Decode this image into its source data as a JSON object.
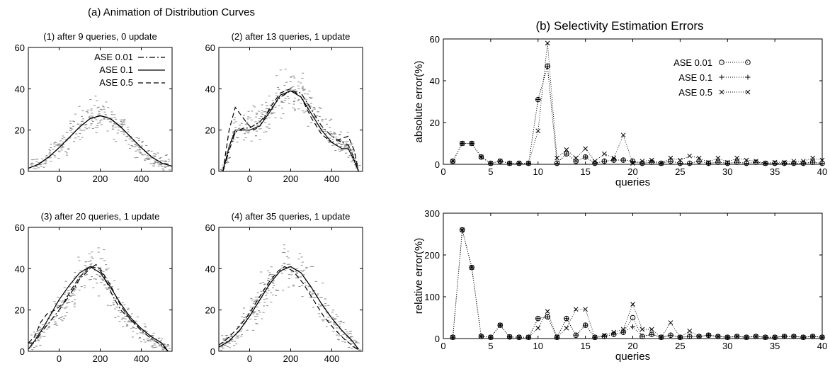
{
  "titles": {
    "left": "(a) Animation of Distribution Curves",
    "right": "(b) Selectivity Estimation Errors"
  },
  "chart_data": [
    {
      "type": "line",
      "title": "(1) after 9 queries, 0 update",
      "xlim": [
        -150,
        550
      ],
      "ylim": [
        0,
        60
      ],
      "xticks": [
        0,
        200,
        400
      ],
      "yticks": [
        0,
        20,
        40,
        60
      ],
      "legend": "top-right",
      "series": [
        {
          "name": "ASE 0.01",
          "x": [
            -150,
            -100,
            -50,
            0,
            50,
            100,
            150,
            200,
            250,
            300,
            350,
            400,
            450,
            500,
            550
          ],
          "y": [
            1.5,
            3.5,
            7,
            11.5,
            16.5,
            21.5,
            25.5,
            27,
            25.5,
            21.5,
            16.5,
            11.5,
            7,
            4,
            2.5
          ]
        },
        {
          "name": "ASE 0.1",
          "x": [
            -150,
            -100,
            -50,
            0,
            50,
            100,
            150,
            200,
            250,
            300,
            350,
            400,
            450,
            500,
            550
          ],
          "y": [
            1.5,
            3.5,
            7,
            11.5,
            16.5,
            21.5,
            25.5,
            27,
            25.5,
            21.5,
            16.5,
            11.5,
            7,
            4,
            2.5
          ]
        },
        {
          "name": "ASE 0.5",
          "x": [
            -150,
            -100,
            -50,
            0,
            50,
            100,
            150,
            200,
            250,
            300,
            350,
            400,
            450,
            500,
            550
          ],
          "y": [
            1.5,
            3.5,
            7,
            11.5,
            16.5,
            21.5,
            25.5,
            27,
            25.5,
            21.5,
            16.5,
            11.5,
            7,
            4,
            2.5
          ]
        }
      ]
    },
    {
      "type": "line",
      "title": "(2) after 13 queries, 1 update",
      "xlim": [
        -150,
        550
      ],
      "ylim": [
        0,
        60
      ],
      "xticks": [
        0,
        200,
        400
      ],
      "yticks": [
        0,
        20,
        40,
        60
      ],
      "series": [
        {
          "name": "ASE 0.01",
          "x": [
            -130,
            -100,
            -70,
            -30,
            0,
            50,
            100,
            150,
            200,
            250,
            300,
            350,
            400,
            450,
            480,
            510,
            530
          ],
          "y": [
            0,
            10,
            19,
            21,
            21,
            24,
            30,
            36,
            39,
            38,
            30,
            22,
            17,
            14,
            13,
            6,
            0
          ]
        },
        {
          "name": "ASE 0.1",
          "x": [
            -130,
            -100,
            -70,
            -30,
            0,
            50,
            100,
            150,
            200,
            250,
            300,
            350,
            400,
            450,
            480,
            510,
            530
          ],
          "y": [
            0,
            12,
            20,
            20,
            20,
            22,
            29,
            37,
            39,
            36,
            28,
            20,
            14,
            11,
            11,
            5,
            0
          ]
        },
        {
          "name": "ASE 0.5",
          "x": [
            -130,
            -100,
            -70,
            -40,
            -10,
            20,
            50,
            100,
            150,
            200,
            250,
            300,
            350,
            400,
            450,
            480,
            510,
            530
          ],
          "y": [
            0,
            20,
            31,
            27,
            23,
            20,
            22,
            31,
            38,
            40,
            36,
            26,
            18,
            14,
            16,
            17,
            10,
            0
          ]
        }
      ]
    },
    {
      "type": "line",
      "title": "(3) after 20 queries, 1 update",
      "xlim": [
        -150,
        550
      ],
      "ylim": [
        0,
        60
      ],
      "xticks": [
        0,
        200,
        400
      ],
      "yticks": [
        0,
        20,
        40,
        60
      ],
      "series": [
        {
          "name": "ASE 0.01",
          "x": [
            -150,
            -120,
            -80,
            -40,
            0,
            50,
            100,
            150,
            180,
            220,
            260,
            300,
            350,
            400,
            450,
            500,
            530
          ],
          "y": [
            4,
            4,
            10,
            15,
            20,
            27,
            35,
            40,
            42,
            36,
            27,
            20,
            15,
            10,
            6,
            3,
            0
          ]
        },
        {
          "name": "ASE 0.1",
          "x": [
            -150,
            -120,
            -80,
            -40,
            0,
            50,
            100,
            150,
            200,
            250,
            300,
            350,
            400,
            450,
            500,
            530
          ],
          "y": [
            1,
            5,
            11,
            18,
            25,
            32,
            38,
            41,
            38,
            31,
            23,
            16,
            11,
            7,
            4,
            0
          ]
        },
        {
          "name": "ASE 0.5",
          "x": [
            -150,
            -120,
            -90,
            -60,
            -20,
            20,
            60,
            100,
            150,
            200,
            250,
            300,
            350,
            400,
            450,
            500,
            530
          ],
          "y": [
            4,
            7,
            14,
            18,
            20,
            23,
            30,
            36,
            41,
            40,
            32,
            22,
            15,
            11,
            7,
            4,
            0
          ]
        }
      ]
    },
    {
      "type": "line",
      "title": "(4) after 35 queries, 1 update",
      "xlim": [
        -150,
        550
      ],
      "ylim": [
        0,
        60
      ],
      "xticks": [
        0,
        200,
        400
      ],
      "yticks": [
        0,
        20,
        40,
        60
      ],
      "series": [
        {
          "name": "ASE 0.01",
          "x": [
            -150,
            -100,
            -50,
            0,
            50,
            100,
            150,
            200,
            250,
            300,
            350,
            400,
            450,
            500,
            530
          ],
          "y": [
            2,
            5,
            10,
            17,
            25,
            33,
            39,
            41,
            38,
            31,
            23,
            16,
            10,
            5,
            1
          ]
        },
        {
          "name": "ASE 0.1",
          "x": [
            -150,
            -100,
            -50,
            0,
            50,
            100,
            150,
            200,
            250,
            300,
            350,
            400,
            450,
            500,
            530
          ],
          "y": [
            2,
            5,
            10,
            17,
            25,
            33,
            39,
            41,
            38,
            31,
            23,
            16,
            10,
            5,
            1
          ]
        },
        {
          "name": "ASE 0.5",
          "x": [
            -150,
            -110,
            -60,
            -10,
            40,
            90,
            140,
            170,
            210,
            260,
            310,
            360,
            410,
            460,
            510,
            540
          ],
          "y": [
            3,
            6,
            11,
            17,
            25,
            33,
            39,
            41,
            39,
            33,
            25,
            17,
            11,
            6,
            2,
            0
          ]
        }
      ]
    },
    {
      "type": "scatter",
      "title": "",
      "xlabel": "queries",
      "ylabel": "absolute error(%)",
      "xlim": [
        0,
        40
      ],
      "ylim": [
        0,
        60
      ],
      "xticks": [
        0,
        5,
        10,
        15,
        20,
        25,
        30,
        35,
        40
      ],
      "yticks": [
        0,
        20,
        40,
        60
      ],
      "legend": "top-right",
      "series": [
        {
          "name": "ASE 0.01",
          "x": [
            1,
            2,
            3,
            4,
            5,
            6,
            7,
            8,
            9,
            10,
            11,
            12,
            13,
            14,
            15,
            16,
            17,
            18,
            19,
            20,
            21,
            22,
            23,
            24,
            25,
            26,
            27,
            28,
            29,
            30,
            31,
            32,
            33,
            34,
            35,
            36,
            37,
            38,
            39,
            40
          ],
          "y": [
            1.5,
            10,
            10,
            3.5,
            0.5,
            1.5,
            0.5,
            0.5,
            0.5,
            31,
            47,
            0.5,
            5,
            1.5,
            3.5,
            0.5,
            1.5,
            2,
            2,
            1.5,
            0.5,
            1,
            0.5,
            1.5,
            0.5,
            0.5,
            1.5,
            0.5,
            1,
            0.5,
            1,
            0.5,
            1,
            0.5,
            0.5,
            0.5,
            0.5,
            0.5,
            1,
            0.5
          ]
        },
        {
          "name": "ASE 0.1",
          "x": [
            1,
            2,
            3,
            4,
            5,
            6,
            7,
            8,
            9,
            10,
            11,
            12,
            13,
            14,
            15,
            16,
            17,
            18,
            19,
            20,
            21,
            22,
            23,
            24,
            25,
            26,
            27,
            28,
            29,
            30,
            31,
            32,
            33,
            34,
            35,
            36,
            37,
            38,
            39,
            40
          ],
          "y": [
            1.5,
            10,
            10,
            3.5,
            0.5,
            1.5,
            0.5,
            0.5,
            0.5,
            31,
            47,
            0.5,
            5,
            1.5,
            3.5,
            0.5,
            1.5,
            2,
            2,
            1.5,
            0.5,
            1,
            0.5,
            1.5,
            0.5,
            0.5,
            1.5,
            0.5,
            1,
            0.5,
            1,
            0.5,
            1,
            0.5,
            0.5,
            0.5,
            0.5,
            0.5,
            1,
            0.5
          ]
        },
        {
          "name": "ASE 0.5",
          "x": [
            1,
            2,
            3,
            4,
            5,
            6,
            7,
            8,
            9,
            10,
            11,
            12,
            13,
            14,
            15,
            16,
            17,
            18,
            19,
            20,
            21,
            22,
            23,
            24,
            25,
            26,
            27,
            28,
            29,
            30,
            31,
            32,
            33,
            34,
            35,
            36,
            37,
            38,
            39,
            40
          ],
          "y": [
            1.5,
            10,
            10,
            3.5,
            0.5,
            1.5,
            0.5,
            0.5,
            0.5,
            16,
            58,
            3,
            7,
            3,
            7.5,
            1.5,
            5,
            3,
            14,
            0.5,
            1.5,
            2,
            0.5,
            3,
            2,
            4,
            3,
            1,
            3,
            1,
            3,
            2,
            1.5,
            0.5,
            1,
            1,
            1.5,
            1.5,
            3,
            2
          ]
        }
      ]
    },
    {
      "type": "scatter",
      "title": "",
      "xlabel": "queries",
      "ylabel": "relative error(%)",
      "xlim": [
        0,
        40
      ],
      "ylim": [
        0,
        300
      ],
      "xticks": [
        0,
        5,
        10,
        15,
        20,
        25,
        30,
        35,
        40
      ],
      "yticks": [
        0,
        100,
        200,
        300
      ],
      "series": [
        {
          "name": "ASE 0.01",
          "x": [
            1,
            2,
            3,
            4,
            5,
            6,
            7,
            8,
            9,
            10,
            11,
            12,
            13,
            14,
            15,
            16,
            17,
            18,
            19,
            20,
            21,
            22,
            23,
            24,
            25,
            26,
            27,
            28,
            29,
            30,
            31,
            32,
            33,
            34,
            35,
            36,
            37,
            38,
            39,
            40
          ],
          "y": [
            3,
            260,
            170,
            5,
            3,
            32,
            4,
            3,
            3,
            48,
            52,
            3,
            48,
            8,
            32,
            3,
            5,
            10,
            15,
            50,
            5,
            10,
            3,
            8,
            3,
            5,
            5,
            8,
            5,
            3,
            5,
            3,
            5,
            3,
            3,
            5,
            5,
            3,
            5,
            3
          ]
        },
        {
          "name": "ASE 0.1",
          "x": [
            1,
            2,
            3,
            4,
            5,
            6,
            7,
            8,
            9,
            10,
            11,
            12,
            13,
            14,
            15,
            16,
            17,
            18,
            19,
            20,
            21,
            22,
            23,
            24,
            25,
            26,
            27,
            28,
            29,
            30,
            31,
            32,
            33,
            34,
            35,
            36,
            37,
            38,
            39,
            40
          ],
          "y": [
            3,
            260,
            170,
            5,
            3,
            32,
            4,
            3,
            3,
            48,
            52,
            3,
            48,
            8,
            32,
            3,
            5,
            10,
            15,
            28,
            5,
            10,
            3,
            8,
            3,
            5,
            5,
            8,
            5,
            3,
            5,
            3,
            5,
            3,
            3,
            5,
            5,
            3,
            5,
            3
          ]
        },
        {
          "name": "ASE 0.5",
          "x": [
            1,
            2,
            3,
            4,
            5,
            6,
            7,
            8,
            9,
            10,
            11,
            12,
            13,
            14,
            15,
            16,
            17,
            18,
            19,
            20,
            21,
            22,
            23,
            24,
            25,
            26,
            27,
            28,
            29,
            30,
            31,
            32,
            33,
            34,
            35,
            36,
            37,
            38,
            39,
            40
          ],
          "y": [
            3,
            260,
            170,
            5,
            3,
            32,
            4,
            3,
            3,
            25,
            65,
            3,
            25,
            70,
            70,
            3,
            8,
            15,
            22,
            82,
            22,
            22,
            3,
            38,
            3,
            18,
            5,
            8,
            5,
            3,
            5,
            3,
            5,
            3,
            3,
            5,
            5,
            3,
            5,
            3
          ]
        }
      ]
    }
  ]
}
